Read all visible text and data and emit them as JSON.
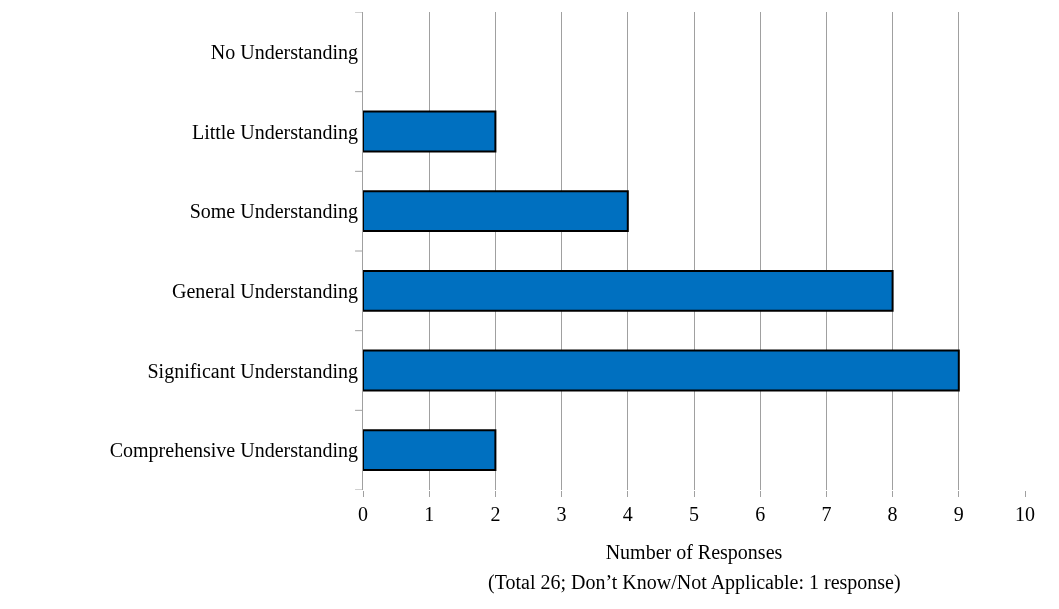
{
  "chart_data": {
    "type": "bar",
    "orientation": "horizontal",
    "categories": [
      "No Understanding",
      "Little Understanding",
      "Some Understanding",
      "General Understanding",
      "Significant Understanding",
      "Comprehensive Understanding"
    ],
    "values": [
      0,
      2,
      4,
      8,
      9,
      2
    ],
    "color": "#0070c0",
    "xlim": [
      0,
      10
    ],
    "xticks": [
      0,
      1,
      2,
      3,
      4,
      5,
      6,
      7,
      8,
      9,
      10
    ],
    "xlabel": "Number of Responses",
    "annotations": [
      "(Total 26; Don’t Know/Not Applicable: 1 response)"
    ],
    "grid": "x"
  }
}
